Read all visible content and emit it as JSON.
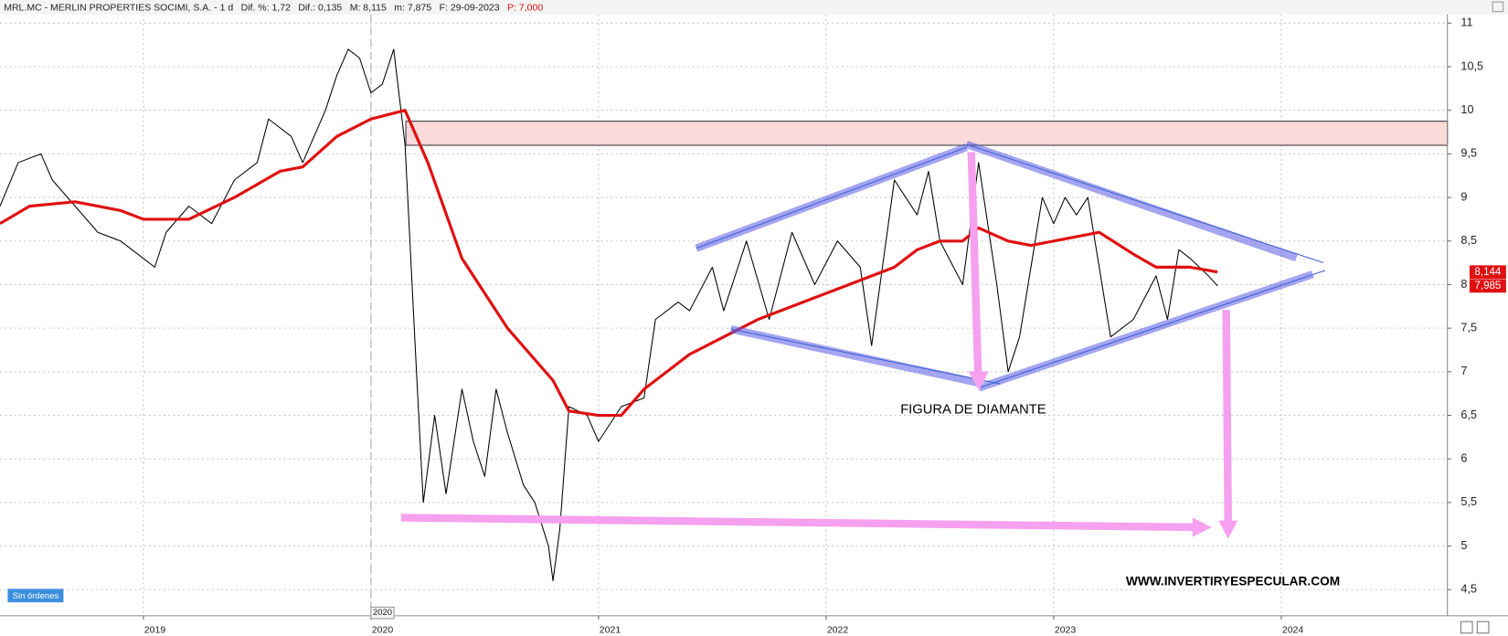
{
  "chart_data": {
    "type": "line",
    "title": "MRL.MC - MERLIN PROPERTIES SOCIMI, S.A. - 1 d",
    "stats": [
      "Dif. %: 1,72",
      "Dif.: 0,135",
      "M: 8,115",
      "m: 7,875",
      "F: 29-09-2023"
    ],
    "last_price": "P: 7,000",
    "status": "Sin órdenes",
    "annotations": [
      "FIGURA DE DIAMANTE",
      "WWW.INVERTIRYESPECULAR.COM"
    ],
    "cursor_label": 2020,
    "grid": true,
    "xlim": [
      2018.37,
      2024.73
    ],
    "xticks": [
      2019,
      2020,
      2021,
      2022,
      2023,
      2024
    ],
    "ylim": [
      4.2,
      11.1
    ],
    "yticks": [
      {
        "value": 4.5,
        "label": "4,5"
      },
      5,
      {
        "value": 5.5,
        "label": "5,5"
      },
      6,
      {
        "value": 6.5,
        "label": "6,5"
      },
      7,
      {
        "value": 7.5,
        "label": "7,5"
      },
      8,
      {
        "value": 8.5,
        "label": "8,5"
      },
      9,
      {
        "value": 9.5,
        "label": "9,5"
      },
      10,
      {
        "value": 10.5,
        "label": "10,5"
      },
      11
    ],
    "price_labels": [
      {
        "value": 8.144,
        "label": "8,144",
        "color": "#e01010"
      },
      {
        "value": 7.985,
        "label": "7,985",
        "color": "#e01010"
      }
    ],
    "series": [
      {
        "color": "#000000",
        "width": 1,
        "x": [
          2018.37,
          2018.45,
          2018.55,
          2018.6,
          2018.7,
          2018.8,
          2018.9,
          2019.0,
          2019.05,
          2019.1,
          2019.2,
          2019.3,
          2019.4,
          2019.5,
          2019.55,
          2019.65,
          2019.7,
          2019.8,
          2019.85,
          2019.9,
          2019.95,
          2020.0,
          2020.05,
          2020.1,
          2020.15,
          2020.2,
          2020.23,
          2020.28,
          2020.33,
          2020.4,
          2020.45,
          2020.5,
          2020.55,
          2020.6,
          2020.67,
          2020.72,
          2020.78,
          2020.8,
          2020.83,
          2020.87,
          2020.95,
          2021.0,
          2021.1,
          2021.2,
          2021.25,
          2021.35,
          2021.4,
          2021.5,
          2021.55,
          2021.65,
          2021.75,
          2021.85,
          2021.95,
          2022.05,
          2022.15,
          2022.2,
          2022.3,
          2022.4,
          2022.45,
          2022.5,
          2022.6,
          2022.67,
          2022.75,
          2022.8,
          2022.85,
          2022.9,
          2022.95,
          2023.0,
          2023.05,
          2023.1,
          2023.15,
          2023.2,
          2023.25,
          2023.35,
          2023.45,
          2023.5,
          2023.55,
          2023.6,
          2023.68,
          2023.72
        ],
        "values": [
          8.9,
          9.4,
          9.5,
          9.2,
          8.9,
          8.6,
          8.5,
          8.3,
          8.2,
          8.6,
          8.9,
          8.7,
          9.2,
          9.4,
          9.9,
          9.7,
          9.4,
          10.0,
          10.4,
          10.7,
          10.6,
          10.2,
          10.3,
          10.7,
          9.6,
          7.0,
          5.5,
          6.5,
          5.6,
          6.8,
          6.2,
          5.8,
          6.8,
          6.3,
          5.7,
          5.5,
          5.0,
          4.6,
          5.2,
          6.6,
          6.5,
          6.2,
          6.6,
          6.7,
          7.6,
          7.8,
          7.7,
          8.2,
          7.7,
          8.5,
          7.6,
          8.6,
          8.0,
          8.5,
          8.2,
          7.3,
          9.2,
          8.8,
          9.3,
          8.5,
          8.0,
          9.4,
          8.0,
          7.0,
          7.4,
          8.2,
          9.0,
          8.7,
          9.0,
          8.8,
          9.0,
          8.2,
          7.4,
          7.6,
          8.1,
          7.6,
          8.4,
          8.3,
          8.1,
          7.985
        ]
      },
      {
        "color": "#e01010",
        "width": 3,
        "x": [
          2018.37,
          2018.5,
          2018.7,
          2018.9,
          2019.0,
          2019.2,
          2019.4,
          2019.6,
          2019.7,
          2019.85,
          2020.0,
          2020.15,
          2020.25,
          2020.4,
          2020.6,
          2020.8,
          2020.87,
          2021.0,
          2021.1,
          2021.2,
          2021.4,
          2021.55,
          2021.7,
          2021.9,
          2022.1,
          2022.3,
          2022.4,
          2022.5,
          2022.6,
          2022.67,
          2022.8,
          2022.9,
          2023.0,
          2023.2,
          2023.35,
          2023.45,
          2023.6,
          2023.72
        ],
        "values": [
          8.7,
          8.9,
          8.95,
          8.85,
          8.75,
          8.75,
          9.0,
          9.3,
          9.35,
          9.7,
          9.9,
          10.0,
          9.4,
          8.3,
          7.5,
          6.9,
          6.55,
          6.5,
          6.5,
          6.8,
          7.2,
          7.4,
          7.6,
          7.8,
          8.0,
          8.2,
          8.4,
          8.5,
          8.5,
          8.65,
          8.5,
          8.45,
          8.5,
          8.6,
          8.35,
          8.2,
          8.2,
          8.144
        ]
      }
    ]
  }
}
